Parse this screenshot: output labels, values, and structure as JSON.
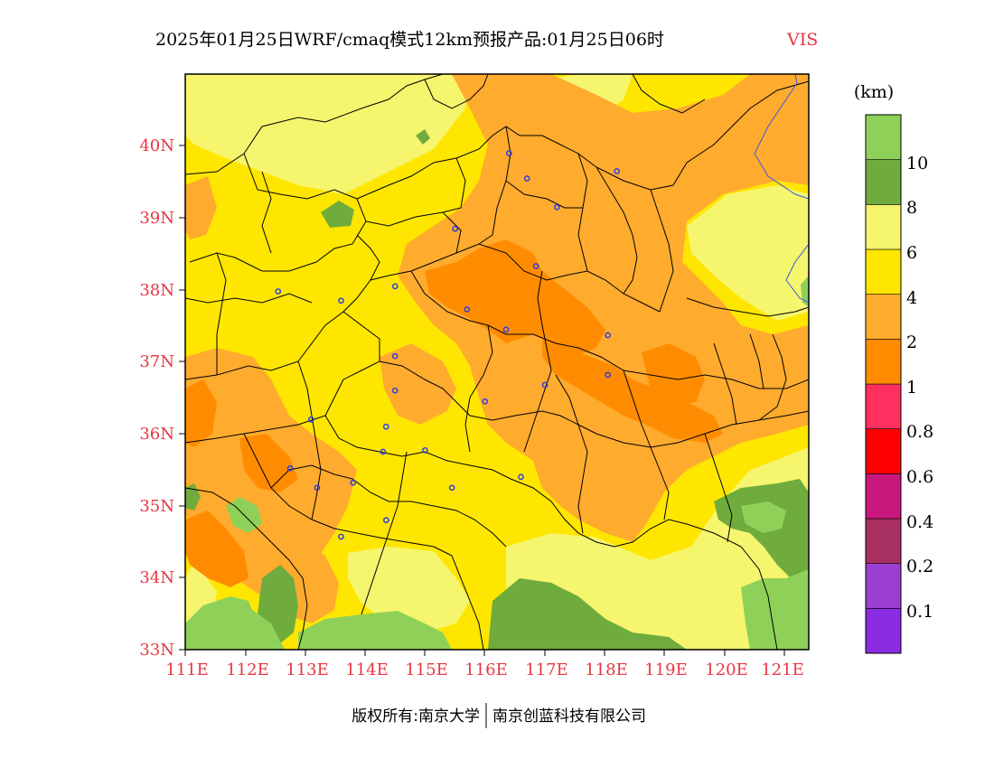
{
  "title": {
    "main": "2025年01月25日WRF/cmaq模式12km预报产品:01月25日06时",
    "variable": "VIS"
  },
  "colors": {
    "label_red": "#e8363f",
    "bins": [
      "#8b2be2",
      "#9b3fd0",
      "#a83060",
      "#c8187e",
      "#ff0000",
      "#ff3060",
      "#ff8c00",
      "#ffab2e",
      "#ffe600",
      "#f5f56e",
      "#6fac3d",
      "#8fd158"
    ]
  },
  "colorbar": {
    "unit": "(km)",
    "labels": [
      "0.1",
      "0.2",
      "0.4",
      "0.6",
      "0.8",
      "1",
      "2",
      "4",
      "6",
      "8",
      "10"
    ]
  },
  "axes": {
    "x_labels": [
      "111E",
      "112E",
      "113E",
      "114E",
      "115E",
      "116E",
      "117E",
      "118E",
      "119E",
      "120E",
      "121E"
    ],
    "y_labels": [
      "33N",
      "34N",
      "35N",
      "36N",
      "37N",
      "38N",
      "39N",
      "40N"
    ]
  },
  "footer": {
    "left": "版权所有:南京大学",
    "right": "南京创蓝科技有限公司"
  },
  "map": {
    "bounds": {
      "lon_min": 111.0,
      "lon_max": 121.4,
      "lat_min": 33.0,
      "lat_max": 41.0
    },
    "stations": [
      {
        "lon": 116.4,
        "lat": 39.9
      },
      {
        "lon": 116.7,
        "lat": 39.55
      },
      {
        "lon": 118.2,
        "lat": 39.65
      },
      {
        "lon": 117.2,
        "lat": 39.15
      },
      {
        "lon": 115.5,
        "lat": 38.85
      },
      {
        "lon": 116.85,
        "lat": 38.33
      },
      {
        "lon": 112.55,
        "lat": 37.98
      },
      {
        "lon": 113.6,
        "lat": 37.85
      },
      {
        "lon": 114.5,
        "lat": 38.05
      },
      {
        "lon": 115.7,
        "lat": 37.73
      },
      {
        "lon": 116.35,
        "lat": 37.45
      },
      {
        "lon": 118.05,
        "lat": 37.37
      },
      {
        "lon": 114.5,
        "lat": 37.08
      },
      {
        "lon": 114.5,
        "lat": 36.6
      },
      {
        "lon": 116.0,
        "lat": 36.45
      },
      {
        "lon": 117.0,
        "lat": 36.68
      },
      {
        "lon": 118.05,
        "lat": 36.82
      },
      {
        "lon": 113.1,
        "lat": 36.2
      },
      {
        "lon": 114.35,
        "lat": 36.1
      },
      {
        "lon": 114.3,
        "lat": 35.75
      },
      {
        "lon": 115.0,
        "lat": 35.77
      },
      {
        "lon": 112.75,
        "lat": 35.52
      },
      {
        "lon": 113.2,
        "lat": 35.25
      },
      {
        "lon": 113.8,
        "lat": 35.32
      },
      {
        "lon": 115.45,
        "lat": 35.25
      },
      {
        "lon": 116.6,
        "lat": 35.4
      },
      {
        "lon": 114.35,
        "lat": 34.8
      },
      {
        "lon": 113.6,
        "lat": 34.57
      }
    ]
  }
}
